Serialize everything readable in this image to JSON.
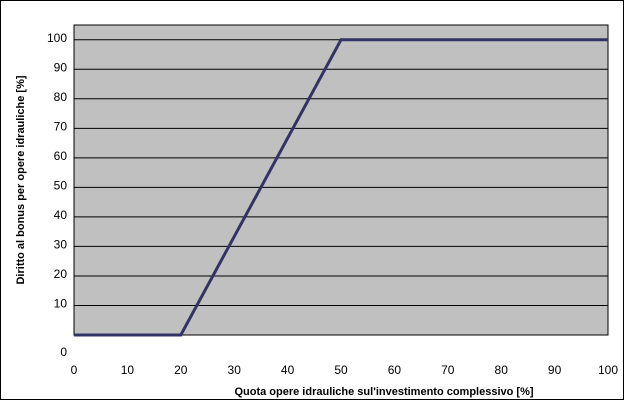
{
  "chart_data": {
    "type": "line",
    "title": "",
    "xlabel": "Quota opere idrauliche sul'investimento complessivo [%]",
    "ylabel": "Diritto al bonus per opere idrauliche [%]",
    "xlim": [
      0,
      100
    ],
    "ylim": [
      0,
      105
    ],
    "x_ticks": [
      0,
      10,
      20,
      30,
      40,
      50,
      60,
      70,
      80,
      90,
      100
    ],
    "y_ticks": [
      0,
      10,
      20,
      30,
      40,
      50,
      60,
      70,
      80,
      90,
      100
    ],
    "grid": "horizontal",
    "legend": "none",
    "colors": {
      "plot_background": "#c0c0c0",
      "series_line": "#333366",
      "gridline": "#000000"
    },
    "series": [
      {
        "x": [
          0,
          20,
          50,
          100
        ],
        "y": [
          0,
          0,
          100,
          100
        ]
      }
    ]
  }
}
